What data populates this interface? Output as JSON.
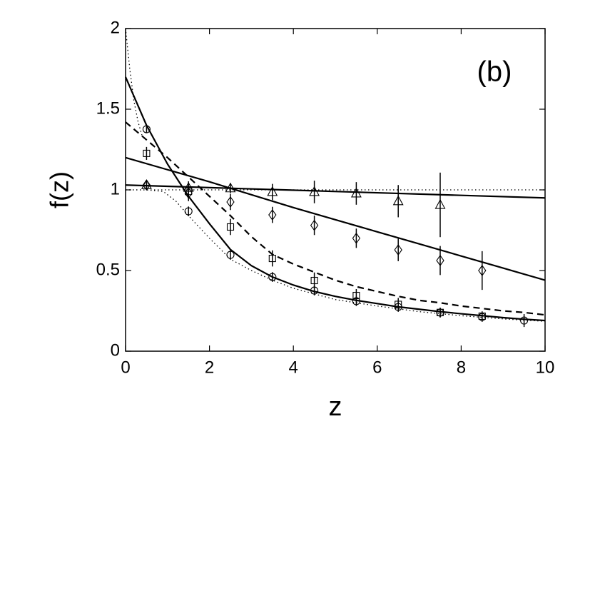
{
  "chart_data": {
    "type": "line",
    "annotation": "(b)",
    "xlabel": "z",
    "ylabel": "f(z)",
    "xlim": [
      0,
      10
    ],
    "ylim": [
      0,
      2
    ],
    "xticks": [
      0,
      2,
      4,
      6,
      8,
      10
    ],
    "yticks": [
      0,
      0.5,
      1,
      1.5,
      2
    ],
    "color": "#000000",
    "series": [
      {
        "style": "solid",
        "x": [
          0,
          0.5,
          1,
          1.5,
          2,
          2.5,
          3,
          3.5,
          4,
          4.5,
          5,
          5.5,
          6,
          6.5,
          7,
          7.5,
          8,
          8.5,
          9,
          9.5,
          10
        ],
        "values": [
          1.7,
          1.4,
          1.16,
          0.96,
          0.79,
          0.63,
          0.53,
          0.46,
          0.41,
          0.37,
          0.34,
          0.315,
          0.295,
          0.275,
          0.26,
          0.245,
          0.232,
          0.22,
          0.208,
          0.198,
          0.19
        ]
      },
      {
        "style": "dashed",
        "x": [
          0,
          0.5,
          1,
          1.5,
          2,
          2.5,
          3,
          3.5,
          4,
          4.5,
          5,
          5.5,
          6,
          6.5,
          7,
          7.5,
          8,
          8.5,
          9,
          9.5,
          10
        ],
        "values": [
          1.42,
          1.31,
          1.2,
          1.08,
          0.96,
          0.84,
          0.71,
          0.6,
          0.54,
          0.49,
          0.44,
          0.4,
          0.37,
          0.34,
          0.315,
          0.3,
          0.28,
          0.265,
          0.25,
          0.24,
          0.225
        ]
      },
      {
        "style": "solid",
        "x": [
          0,
          1,
          2,
          3,
          4,
          5,
          6,
          7,
          8,
          9,
          10
        ],
        "values": [
          1.2,
          1.125,
          1.05,
          0.97,
          0.89,
          0.815,
          0.74,
          0.665,
          0.59,
          0.515,
          0.44
        ]
      },
      {
        "style": "solid",
        "x": [
          0,
          10
        ],
        "values": [
          1.03,
          0.95
        ]
      },
      {
        "style": "dotted",
        "x": [
          0,
          10
        ],
        "values": [
          1,
          1
        ]
      },
      {
        "style": "dotted",
        "x": [
          0,
          0.5,
          0.9,
          1.2,
          1.5,
          2,
          2.5,
          3,
          3.5,
          4,
          5,
          6,
          7,
          8,
          9,
          10
        ],
        "values": [
          1,
          1,
          0.99,
          0.93,
          0.84,
          0.7,
          0.57,
          0.5,
          0.44,
          0.39,
          0.32,
          0.28,
          0.245,
          0.22,
          0.2,
          0.185
        ]
      },
      {
        "style": "dotted",
        "x": [
          0,
          0.1,
          0.2,
          0.3,
          0.4
        ],
        "values": [
          2.0,
          1.75,
          1.55,
          1.42,
          1.33
        ]
      },
      {
        "marker": "circle",
        "x": [
          0.5,
          1.5,
          2.5,
          3.5,
          4.5,
          5.5,
          6.5,
          7.5,
          8.5,
          9.5
        ],
        "values": [
          1.376,
          0.867,
          0.597,
          0.46,
          0.376,
          0.31,
          0.274,
          0.239,
          0.212,
          0.19
        ],
        "errors": [
          0.02,
          0.03,
          0.03,
          0.03,
          0.03,
          0.03,
          0.03,
          0.03,
          0.03,
          0.04
        ]
      },
      {
        "marker": "square",
        "x": [
          0.5,
          1.5,
          2.5,
          3.5,
          4.5,
          5.5,
          6.5,
          7.5,
          8.5
        ],
        "values": [
          1.226,
          0.99,
          0.77,
          0.575,
          0.438,
          0.345,
          0.29,
          0.24,
          0.217
        ],
        "errors": [
          0.04,
          0.04,
          0.05,
          0.05,
          0.05,
          0.04,
          0.04,
          0.03,
          0.03
        ]
      },
      {
        "marker": "diamond",
        "x": [
          0.5,
          1.5,
          2.5,
          3.5,
          4.5,
          5.5,
          6.5,
          7.5,
          8.5
        ],
        "values": [
          1.03,
          0.98,
          0.925,
          0.845,
          0.78,
          0.7,
          0.628,
          0.562,
          0.5
        ],
        "errors": [
          0.03,
          0.05,
          0.05,
          0.05,
          0.06,
          0.06,
          0.07,
          0.09,
          0.12
        ]
      },
      {
        "marker": "triangle",
        "x": [
          0.5,
          1.5,
          2.5,
          3.5,
          4.5,
          5.5,
          6.5,
          7.5
        ],
        "values": [
          1.03,
          1.013,
          1.01,
          0.987,
          0.987,
          0.978,
          0.93,
          0.907
        ],
        "errors": [
          0.03,
          0.04,
          0.03,
          0.05,
          0.07,
          0.07,
          0.1,
          0.2
        ]
      }
    ]
  }
}
